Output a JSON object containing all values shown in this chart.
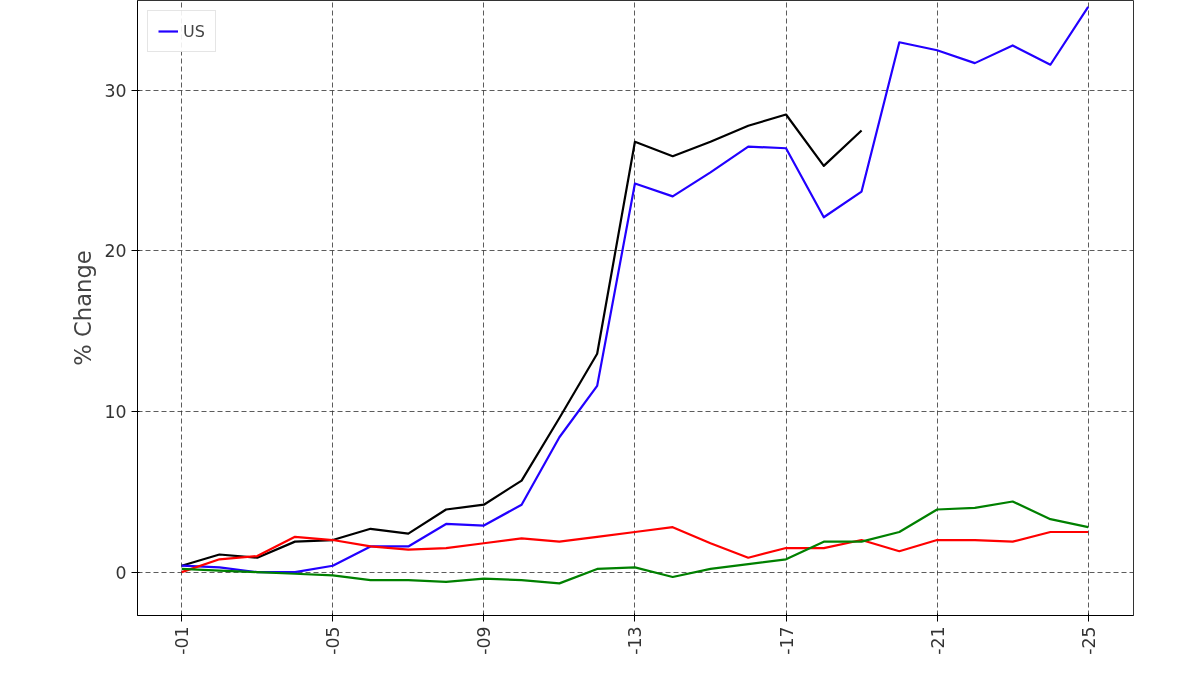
{
  "chart_data": {
    "type": "line",
    "ylabel": "% Change",
    "categories": [
      "-01",
      null,
      null,
      null,
      "-05",
      null,
      null,
      null,
      "-09",
      null,
      null,
      null,
      "-13",
      null,
      null,
      null,
      "-17",
      null,
      null,
      null,
      "-21",
      null,
      null,
      null,
      "-25"
    ],
    "ylim": [
      -2.7,
      35.6
    ],
    "yticks": [
      0,
      10,
      20,
      30
    ],
    "grid": true,
    "legend": "top left",
    "line_style": "solid",
    "series": [
      {
        "color": "#000000",
        "values": [
          0.4,
          1.1,
          0.9,
          1.9,
          2.0,
          2.7,
          2.4,
          3.9,
          4.2,
          5.7,
          9.6,
          13.6,
          26.8,
          25.9,
          26.8,
          27.8,
          28.5,
          25.3,
          27.5,
          null,
          null,
          null,
          null,
          null,
          null
        ]
      },
      {
        "name": "US",
        "color": "#2200ff",
        "values": [
          0.4,
          0.3,
          0.0,
          0.0,
          0.4,
          1.6,
          1.6,
          3.0,
          2.9,
          4.2,
          8.4,
          11.6,
          24.2,
          23.4,
          24.9,
          26.5,
          26.4,
          22.1,
          23.7,
          33.0,
          32.5,
          31.7,
          32.8,
          31.6,
          35.2
        ]
      },
      {
        "color": "#ff0000",
        "values": [
          0.0,
          0.8,
          1.0,
          2.2,
          2.0,
          1.6,
          1.4,
          1.5,
          1.8,
          2.1,
          1.9,
          2.2,
          2.5,
          2.8,
          1.8,
          0.9,
          1.5,
          1.5,
          2.0,
          1.3,
          2.0,
          2.0,
          1.9,
          2.5,
          2.5
        ]
      },
      {
        "color": "#008000",
        "values": [
          0.2,
          0.1,
          0.0,
          -0.1,
          -0.2,
          -0.5,
          -0.5,
          -0.6,
          -0.4,
          -0.5,
          -0.7,
          0.2,
          0.3,
          -0.3,
          0.2,
          0.5,
          0.8,
          1.9,
          1.9,
          2.5,
          3.9,
          4.0,
          4.4,
          3.3,
          2.8
        ]
      }
    ]
  }
}
